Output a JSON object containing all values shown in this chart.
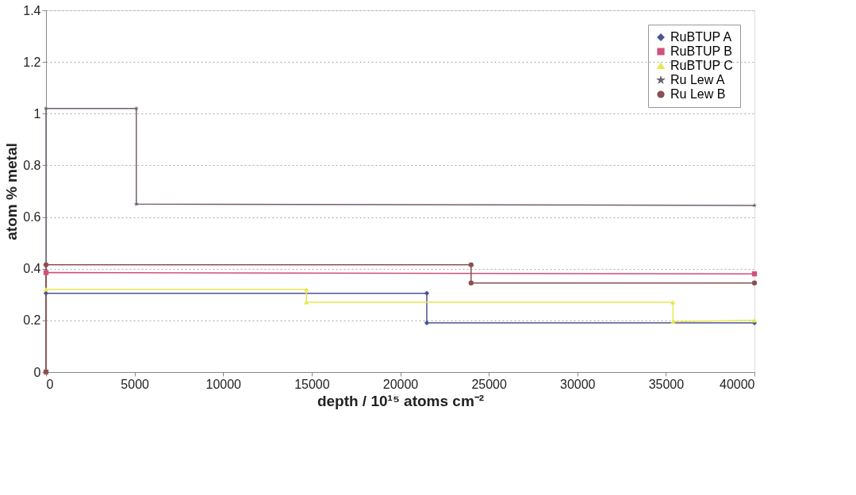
{
  "chart_data": {
    "type": "line",
    "xlabel": "depth / 10¹⁵ atoms cm⁻²",
    "ylabel": "atom % metal",
    "xlim": [
      0,
      40000
    ],
    "xticks": [
      0,
      5000,
      10000,
      15000,
      20000,
      25000,
      30000,
      35000,
      40000
    ],
    "ylim": [
      0,
      1.4
    ],
    "yticks": [
      0,
      0.2,
      0.4,
      0.6,
      0.8,
      1,
      1.2,
      1.4
    ],
    "grid": "y",
    "legend": "top right",
    "line_style": "solid",
    "series": [
      {
        "name": "RuBTUP A",
        "color": "#4a5590",
        "marker": "diamond",
        "x": [
          0,
          0,
          21500,
          21500,
          40000
        ],
        "values": [
          0,
          0.305,
          0.305,
          0.19,
          0.19
        ]
      },
      {
        "name": "RuBTUP B",
        "color": "#d0507a",
        "marker": "square",
        "x": [
          0,
          0,
          40000
        ],
        "values": [
          0,
          0.385,
          0.38
        ]
      },
      {
        "name": "RuBTUP C",
        "color": "#e8e850",
        "marker": "triangle",
        "x": [
          0,
          0,
          14700,
          14700,
          35400,
          35400,
          40000
        ],
        "values": [
          0,
          0.32,
          0.32,
          0.27,
          0.27,
          0.195,
          0.2
        ]
      },
      {
        "name": "Ru Lew A",
        "color": "#706070",
        "marker": "star",
        "x": [
          0,
          0,
          5100,
          5100,
          40000
        ],
        "values": [
          0,
          1.02,
          1.02,
          0.65,
          0.645
        ]
      },
      {
        "name": "Ru Lew B",
        "color": "#8a5050",
        "marker": "circle",
        "x": [
          0,
          0,
          24000,
          24000,
          40000
        ],
        "values": [
          0,
          0.415,
          0.415,
          0.345,
          0.345
        ]
      }
    ]
  }
}
